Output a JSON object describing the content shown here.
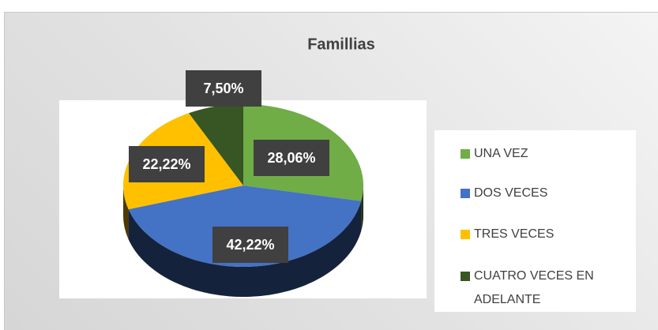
{
  "chart_data": {
    "type": "pie3d",
    "title": "Famillias",
    "categories": [
      "UNA VEZ",
      "DOS VECES",
      "TRES VECES",
      "CUATRO VECES EN ADELANTE"
    ],
    "values": [
      28.06,
      42.22,
      22.22,
      7.5
    ],
    "value_labels": [
      "28,06%",
      "42,22%",
      "22,22%",
      "7,50%"
    ],
    "colors": [
      "#70ad47",
      "#4472c4",
      "#ffc000",
      "#375623"
    ],
    "legend": "right"
  }
}
